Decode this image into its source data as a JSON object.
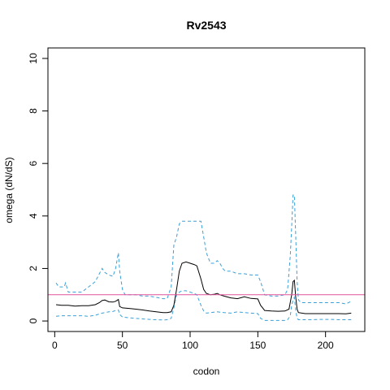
{
  "chart_data": {
    "type": "line",
    "title": "Rv2543",
    "xlabel": "codon",
    "ylabel": "omega (dN/dS)",
    "xlim": [
      -5,
      229
    ],
    "ylim": [
      -0.4,
      10.4
    ],
    "xticks": [
      0,
      50,
      100,
      150,
      200
    ],
    "yticks": [
      0,
      2,
      4,
      6,
      8,
      10
    ],
    "grid": false,
    "reference_line": {
      "y": 1,
      "color": "#e0529c"
    },
    "colors": {
      "mean": "#000000",
      "bounds": "#3aa0d8"
    },
    "series": [
      {
        "role": "upper",
        "x": [
          1,
          3,
          5,
          7,
          8,
          10,
          15,
          20,
          25,
          30,
          33,
          35,
          37,
          40,
          43,
          45,
          47,
          48,
          50,
          52,
          55,
          60,
          65,
          70,
          75,
          80,
          83,
          86,
          88,
          90,
          92,
          94,
          95,
          97,
          100,
          103,
          105,
          108,
          110,
          112,
          115,
          118,
          120,
          122,
          124,
          126,
          130,
          135,
          140,
          145,
          150,
          152,
          155,
          160,
          165,
          170,
          172,
          174,
          175,
          176,
          177,
          178,
          179,
          180,
          182,
          185,
          190,
          195,
          200,
          205,
          210,
          215,
          219
        ],
        "y": [
          1.45,
          1.3,
          1.3,
          1.3,
          1.45,
          1.1,
          1.1,
          1.1,
          1.3,
          1.5,
          1.8,
          2.0,
          1.85,
          1.75,
          1.7,
          2.0,
          2.6,
          1.9,
          1.2,
          1.0,
          1.0,
          1.0,
          0.95,
          0.95,
          0.9,
          0.85,
          0.85,
          1.3,
          2.9,
          3.2,
          3.7,
          3.8,
          3.8,
          3.8,
          3.8,
          3.8,
          3.8,
          3.8,
          3.2,
          2.6,
          2.2,
          2.2,
          2.3,
          2.2,
          2.0,
          1.9,
          1.9,
          1.8,
          1.8,
          1.75,
          1.75,
          1.5,
          1.0,
          0.95,
          0.95,
          1.0,
          1.2,
          2.5,
          3.6,
          4.8,
          4.8,
          3.2,
          1.5,
          0.8,
          0.7,
          0.7,
          0.7,
          0.7,
          0.7,
          0.7,
          0.7,
          0.65,
          0.75
        ]
      },
      {
        "role": "mean",
        "x": [
          1,
          5,
          10,
          15,
          20,
          25,
          30,
          33,
          35,
          37,
          40,
          43,
          45,
          47,
          48,
          50,
          55,
          60,
          65,
          70,
          75,
          80,
          83,
          86,
          88,
          90,
          92,
          94,
          97,
          100,
          103,
          105,
          108,
          110,
          112,
          115,
          118,
          120,
          122,
          125,
          130,
          135,
          140,
          145,
          150,
          152,
          155,
          160,
          165,
          170,
          173,
          175,
          176,
          177,
          178,
          179,
          180,
          185,
          190,
          195,
          200,
          205,
          210,
          215,
          219
        ],
        "y": [
          0.62,
          0.6,
          0.6,
          0.57,
          0.58,
          0.58,
          0.62,
          0.7,
          0.78,
          0.8,
          0.73,
          0.72,
          0.75,
          0.82,
          0.55,
          0.5,
          0.48,
          0.45,
          0.42,
          0.38,
          0.35,
          0.32,
          0.32,
          0.35,
          0.6,
          1.2,
          1.9,
          2.2,
          2.25,
          2.2,
          2.15,
          2.1,
          1.6,
          1.2,
          1.05,
          1.0,
          1.02,
          1.05,
          1.0,
          0.95,
          0.88,
          0.85,
          0.92,
          0.86,
          0.84,
          0.6,
          0.4,
          0.38,
          0.37,
          0.38,
          0.45,
          1.0,
          1.5,
          1.55,
          0.9,
          0.45,
          0.32,
          0.28,
          0.28,
          0.28,
          0.28,
          0.28,
          0.28,
          0.27,
          0.3
        ]
      },
      {
        "role": "lower",
        "x": [
          1,
          5,
          10,
          15,
          20,
          25,
          30,
          35,
          40,
          43,
          45,
          47,
          48,
          50,
          55,
          60,
          65,
          70,
          75,
          80,
          83,
          86,
          88,
          90,
          92,
          94,
          97,
          100,
          103,
          105,
          108,
          110,
          112,
          115,
          120,
          125,
          130,
          135,
          140,
          145,
          150,
          152,
          155,
          160,
          165,
          170,
          172,
          174,
          175,
          176,
          177,
          178,
          179,
          180,
          185,
          190,
          195,
          200,
          205,
          210,
          215,
          219
        ],
        "y": [
          0.18,
          0.2,
          0.2,
          0.2,
          0.2,
          0.18,
          0.22,
          0.3,
          0.35,
          0.36,
          0.4,
          0.42,
          0.25,
          0.15,
          0.12,
          0.1,
          0.08,
          0.06,
          0.05,
          0.04,
          0.05,
          0.1,
          0.5,
          1.0,
          1.1,
          1.15,
          1.15,
          1.1,
          1.05,
          1.0,
          0.6,
          0.38,
          0.3,
          0.32,
          0.35,
          0.32,
          0.3,
          0.35,
          0.32,
          0.3,
          0.28,
          0.1,
          0.02,
          0.02,
          0.02,
          0.02,
          0.05,
          0.2,
          0.6,
          0.8,
          0.9,
          0.4,
          0.1,
          0.05,
          0.05,
          0.05,
          0.06,
          0.06,
          0.06,
          0.05,
          0.05,
          0.05
        ]
      }
    ]
  }
}
